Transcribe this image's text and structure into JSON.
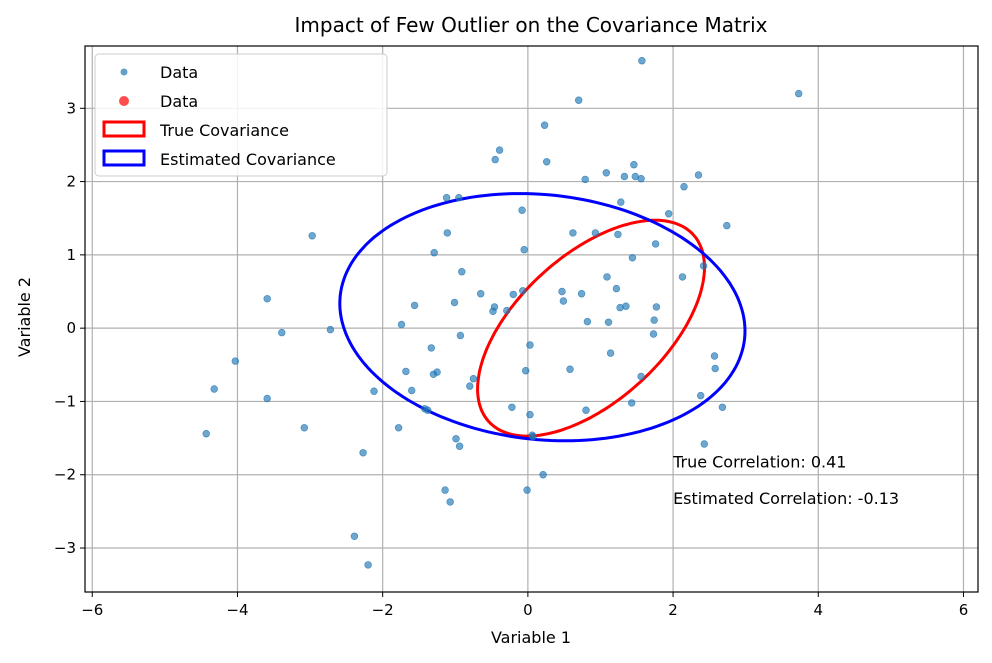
{
  "chart_data": {
    "type": "scatter",
    "title": "Impact of Few Outlier on the Covariance Matrix",
    "xlabel": "Variable 1",
    "ylabel": "Variable 2",
    "xlim": [
      -6.1,
      6.2
    ],
    "ylim": [
      -3.6,
      3.85
    ],
    "xticks": [
      -6,
      -4,
      -2,
      0,
      2,
      4,
      6
    ],
    "yticks": [
      -3,
      -2,
      -1,
      0,
      1,
      2,
      3
    ],
    "grid": true,
    "legend_position": "upper-left",
    "colors": {
      "data": "#1f77b4",
      "outliers": "#ff0000",
      "true_covariance": "#ff0000",
      "estimated_covariance": "#0000ff"
    },
    "series": [
      {
        "name": "Data",
        "kind": "scatter",
        "color": "#1f77b4",
        "points": [
          [
            -4.43,
            -1.44
          ],
          [
            -4.32,
            -0.83
          ],
          [
            -4.03,
            -0.45
          ],
          [
            -3.59,
            0.4
          ],
          [
            -3.59,
            -0.96
          ],
          [
            -3.39,
            -0.06
          ],
          [
            -3.08,
            -1.36
          ],
          [
            -2.97,
            1.26
          ],
          [
            -2.72,
            -0.02
          ],
          [
            -2.39,
            -2.84
          ],
          [
            -2.27,
            -1.7
          ],
          [
            -2.2,
            -3.23
          ],
          [
            -2.12,
            -0.86
          ],
          [
            -1.78,
            -1.36
          ],
          [
            -1.74,
            0.05
          ],
          [
            -1.68,
            -0.59
          ],
          [
            -1.6,
            -0.85
          ],
          [
            -1.56,
            0.31
          ],
          [
            -1.42,
            -1.1
          ],
          [
            -1.38,
            -1.12
          ],
          [
            -1.33,
            -0.27
          ],
          [
            -1.3,
            -0.63
          ],
          [
            -1.29,
            1.03
          ],
          [
            -1.25,
            -0.6
          ],
          [
            -1.14,
            -2.21
          ],
          [
            -1.12,
            1.78
          ],
          [
            -1.11,
            1.3
          ],
          [
            -1.07,
            -2.37
          ],
          [
            -1.01,
            0.35
          ],
          [
            -0.99,
            -1.51
          ],
          [
            -0.95,
            1.78
          ],
          [
            -0.94,
            -1.61
          ],
          [
            -0.93,
            -0.1
          ],
          [
            -0.91,
            0.77
          ],
          [
            -0.8,
            -0.79
          ],
          [
            -0.75,
            -0.69
          ],
          [
            -0.65,
            0.47
          ],
          [
            -0.48,
            0.23
          ],
          [
            -0.46,
            0.29
          ],
          [
            -0.45,
            2.3
          ],
          [
            -0.39,
            2.43
          ],
          [
            -0.29,
            0.24
          ],
          [
            -0.22,
            -1.08
          ],
          [
            -0.2,
            0.46
          ],
          [
            -0.08,
            1.61
          ],
          [
            -0.07,
            0.51
          ],
          [
            -0.05,
            1.07
          ],
          [
            -0.03,
            -0.58
          ],
          [
            -0.01,
            -2.21
          ],
          [
            0.03,
            -0.23
          ],
          [
            0.03,
            -1.18
          ],
          [
            0.06,
            -1.46
          ],
          [
            0.07,
            -1.48
          ],
          [
            0.21,
            -2.0
          ],
          [
            0.23,
            2.77
          ],
          [
            0.26,
            2.27
          ],
          [
            0.47,
            0.5
          ],
          [
            0.49,
            0.37
          ],
          [
            0.58,
            -0.56
          ],
          [
            0.62,
            1.3
          ],
          [
            0.7,
            3.11
          ],
          [
            0.74,
            0.47
          ],
          [
            0.79,
            2.03
          ],
          [
            0.8,
            -1.12
          ],
          [
            0.82,
            0.09
          ],
          [
            0.93,
            1.3
          ],
          [
            1.08,
            2.12
          ],
          [
            1.09,
            0.7
          ],
          [
            1.11,
            0.08
          ],
          [
            1.14,
            -0.34
          ],
          [
            1.22,
            0.54
          ],
          [
            1.24,
            1.28
          ],
          [
            1.27,
            0.28
          ],
          [
            1.28,
            1.72
          ],
          [
            1.33,
            2.07
          ],
          [
            1.35,
            0.3
          ],
          [
            1.43,
            -1.02
          ],
          [
            1.44,
            0.96
          ],
          [
            1.46,
            2.23
          ],
          [
            1.48,
            2.07
          ],
          [
            1.56,
            2.04
          ],
          [
            1.56,
            -0.66
          ],
          [
            1.57,
            3.65
          ],
          [
            1.73,
            -0.08
          ],
          [
            1.74,
            0.11
          ],
          [
            1.76,
            1.15
          ],
          [
            1.77,
            0.29
          ],
          [
            1.94,
            1.56
          ],
          [
            2.13,
            0.7
          ],
          [
            2.15,
            1.93
          ],
          [
            2.35,
            2.09
          ],
          [
            2.38,
            -0.92
          ],
          [
            2.42,
            0.85
          ],
          [
            2.43,
            -1.58
          ],
          [
            2.57,
            -0.38
          ],
          [
            2.58,
            -0.55
          ],
          [
            2.68,
            -1.08
          ],
          [
            2.74,
            1.4
          ],
          [
            3.73,
            3.2
          ]
        ]
      },
      {
        "name": "Data",
        "kind": "scatter",
        "color": "#ff0000",
        "points": []
      },
      {
        "name": "True Covariance",
        "kind": "ellipse",
        "color": "#ff0000",
        "center": [
          0.87,
          0.0
        ],
        "rx": 1.9,
        "ry": 1.0,
        "angle_deg": 42
      },
      {
        "name": "Estimated Covariance",
        "kind": "ellipse",
        "color": "#0000ff",
        "center": [
          0.2,
          0.15
        ],
        "rx": 2.8,
        "ry": 1.67,
        "angle_deg": -6
      }
    ],
    "legend": [
      {
        "label": "Data",
        "type": "marker",
        "color": "#1f77b4",
        "alpha": 0.7
      },
      {
        "label": "Data",
        "type": "marker",
        "color": "#ff0000",
        "alpha": 0.7
      },
      {
        "label": "True Covariance",
        "type": "patch",
        "color": "#ff0000"
      },
      {
        "label": "Estimated Covariance",
        "type": "patch",
        "color": "#0000ff"
      }
    ],
    "annotations": [
      {
        "text": "True Correlation: 0.41",
        "x": 2.0,
        "y": -1.9
      },
      {
        "text": "Estimated Correlation: -0.13",
        "x": 2.0,
        "y": -2.4
      }
    ]
  }
}
